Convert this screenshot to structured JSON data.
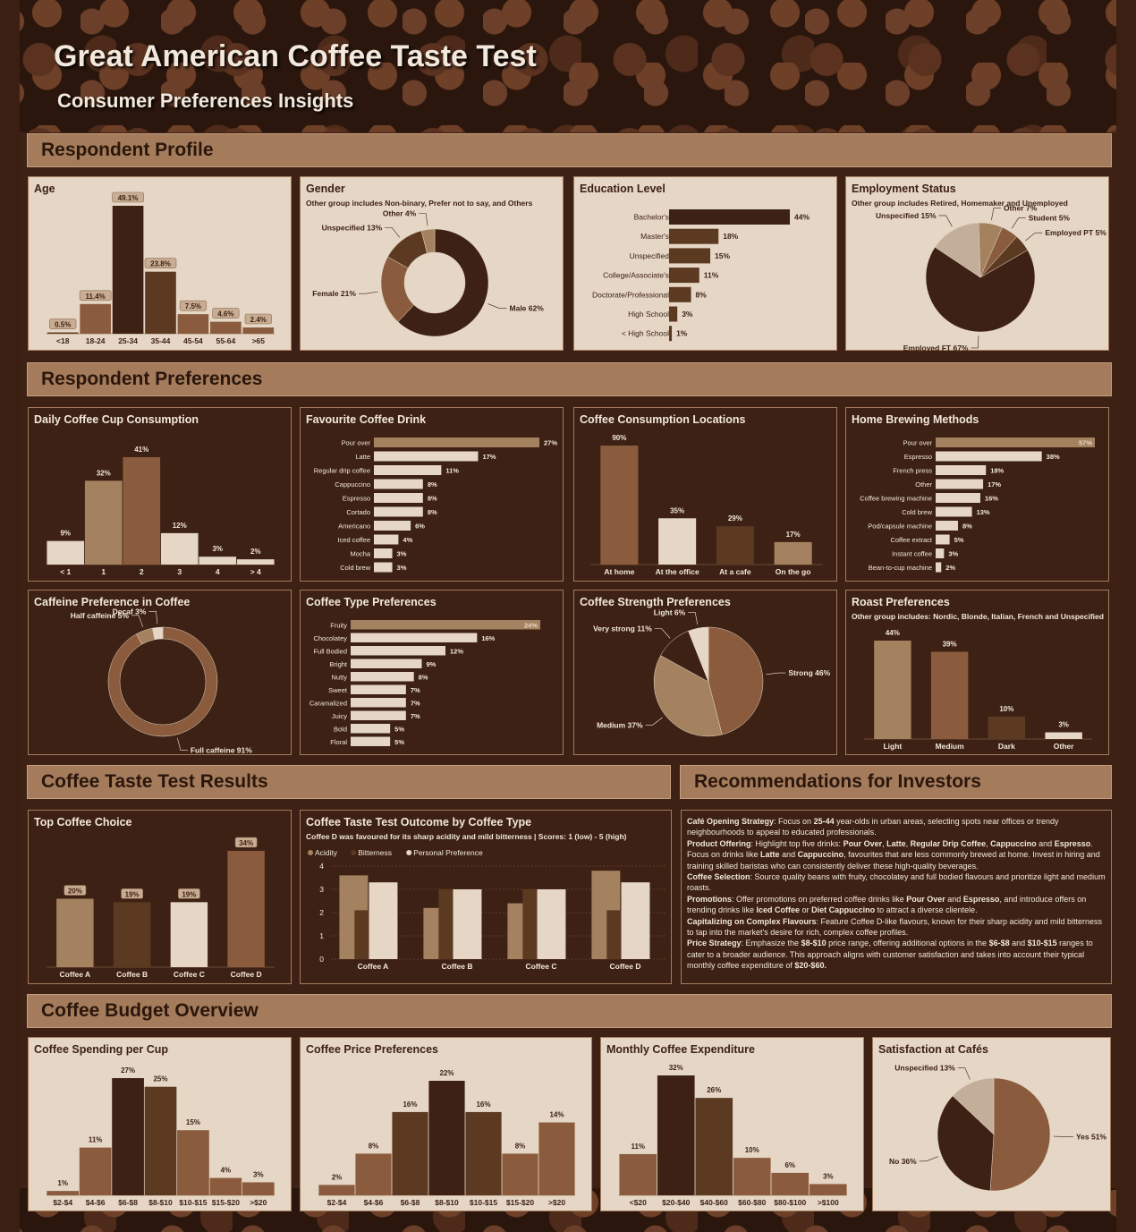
{
  "title": "Great American Coffee Taste Test",
  "subtitle": "Consumer Preferences Insights",
  "sections": {
    "profile": "Respondent Profile",
    "preferences": "Respondent Preferences",
    "results": "Coffee Taste Test Results",
    "recommendations": "Recommendations for Investors",
    "budget": "Coffee Budget Overview"
  },
  "colors": {
    "darkest": "#3d2114",
    "dark": "#5c3a22",
    "mid": "#8a5c3d",
    "tan": "#a5825f",
    "cream": "#e5d6c5",
    "bg": "#3d2114"
  },
  "panels": {
    "age": {
      "title": "Age"
    },
    "gender": {
      "title": "Gender",
      "note": "Other group includes Non-binary, Prefer not to say, and Others"
    },
    "education": {
      "title": "Education Level"
    },
    "employment": {
      "title": "Employment Status",
      "note": "Other group includes Retired, Homemaker and Unemployed"
    },
    "daily": {
      "title": "Daily Coffee Cup Consumption"
    },
    "drink": {
      "title": "Favourite Coffee Drink"
    },
    "locations": {
      "title": "Coffee Consumption Locations"
    },
    "brewing": {
      "title": "Home Brewing Methods"
    },
    "caffeine": {
      "title": "Caffeine Preference in Coffee"
    },
    "type": {
      "title": "Coffee Type Preferences"
    },
    "strength": {
      "title": "Coffee Strength Preferences"
    },
    "roast": {
      "title": "Roast Preferences",
      "note": "Other group includes: Nordic, Blonde, Italian, French and Unspecified"
    },
    "top": {
      "title": "Top Coffee Choice"
    },
    "outcome": {
      "title": "Coffee Taste Test Outcome by Coffee Type",
      "note": "Coffee D was favoured for its sharp acidity and mild bitterness | Scores: 1 (low) - 5 (high)"
    },
    "spending": {
      "title": "Coffee Spending per Cup"
    },
    "price": {
      "title": "Coffee Price Preferences"
    },
    "monthly": {
      "title": "Monthly Coffee Expenditure"
    },
    "satisfaction": {
      "title": "Satisfaction at Cafés"
    }
  },
  "recommendations": [
    {
      "head": "Café Opening Strategy",
      "text": ": Focus on <b>25-44</b> year-olds in urban areas, selecting spots near offices or trendy neighbourhoods to appeal to educated professionals."
    },
    {
      "head": "Product Offering",
      "text": ": Highlight top five drinks: <b>Pour Over</b>, <b>Latte</b>, <b>Regular Drip Coffee</b>, <b>Cappuccino</b> and <b>Espresso</b>. Focus on drinks like <b>Latte</b> and <b>Cappuccino</b>, favourites that are less commonly brewed at home. Invest in hiring and training skilled baristas who can consistently deliver these high-quality beverages."
    },
    {
      "head": "Coffee Selection",
      "text": ": Source quality beans with fruity, chocolatey and full bodied flavours and prioritize light and medium roasts."
    },
    {
      "head": "Promotions",
      "text": ": Offer promotions on preferred coffee drinks like <b>Pour Over</b> and <b>Espresso</b>, and introduce offers on trending drinks like <b>Iced Coffee</b> or <b>Diet Cappuccino</b> to attract a diverse clientele."
    },
    {
      "head": "Capitalizing on Complex Flavours",
      "text": ": Feature Coffee D-like flavours, known for their sharp acidity and mild bitterness to tap into the market's desire for rich, complex coffee profiles."
    },
    {
      "head": "Price Strategy",
      "text": ": Emphasize the <b>$8-$10</b> price range, offering additional options in the <b>$6-$8</b> and <b>$10-$15</b> ranges to cater to a broader audience. This approach aligns with customer satisfaction and takes into account their typical monthly coffee expenditure of <b>$20-$60.</b>"
    }
  ],
  "chart_data": [
    {
      "id": "age",
      "type": "bar",
      "categories": [
        "<18",
        "18-24",
        "25-34",
        "35-44",
        "45-54",
        "55-64",
        ">65"
      ],
      "values": [
        0.5,
        11.4,
        49.1,
        23.8,
        7.5,
        4.6,
        2.4
      ],
      "labels": [
        "0.5%",
        "11.4%",
        "49.1%",
        "23.8%",
        "7.5%",
        "4.6%",
        "2.4%"
      ],
      "colors": [
        "#5c3a22",
        "#8a5c3d",
        "#3d2114",
        "#5c3a22",
        "#8a5c3d",
        "#8a5c3d",
        "#8a5c3d"
      ]
    },
    {
      "id": "gender",
      "type": "pie",
      "donut": true,
      "slices": [
        {
          "label": "Male 62%",
          "value": 62,
          "color": "#3d2114"
        },
        {
          "label": "Female 21%",
          "value": 21,
          "color": "#8a5c3d"
        },
        {
          "label": "Unspecified 13%",
          "value": 13,
          "color": "#5c3a22"
        },
        {
          "label": "Other 4%",
          "value": 4,
          "color": "#a5825f"
        }
      ]
    },
    {
      "id": "education",
      "type": "hbar",
      "categories": [
        "Bachelor's",
        "Master's",
        "Unspecified",
        "College/Associate's",
        "Doctorate/Professional",
        "High School",
        "< High School"
      ],
      "values": [
        44,
        18,
        15,
        11,
        8,
        3,
        1
      ],
      "labels": [
        "44%",
        "18%",
        "15%",
        "11%",
        "8%",
        "3%",
        "1%"
      ],
      "colors": [
        "#3d2114",
        "#5c3a22",
        "#5c3a22",
        "#5c3a22",
        "#5c3a22",
        "#5c3a22",
        "#5c3a22"
      ]
    },
    {
      "id": "employment",
      "type": "pie",
      "slices": [
        {
          "label": "Employed FT 67%",
          "value": 67,
          "color": "#3d2114"
        },
        {
          "label": "Unspecified 15%",
          "value": 15,
          "color": "#c3ae9a"
        },
        {
          "label": "Other 7%",
          "value": 7,
          "color": "#a5825f"
        },
        {
          "label": "Student 5%",
          "value": 5,
          "color": "#8a5c3d"
        },
        {
          "label": "Employed PT 5%",
          "value": 5,
          "color": "#5c3a22"
        }
      ]
    },
    {
      "id": "daily",
      "type": "bar",
      "categories": [
        "< 1",
        "1",
        "2",
        "3",
        "4",
        "> 4"
      ],
      "values": [
        9,
        32,
        41,
        12,
        3,
        2
      ],
      "labels": [
        "9%",
        "32%",
        "41%",
        "12%",
        "3%",
        "2%"
      ],
      "colors": [
        "#e5d6c5",
        "#a5825f",
        "#8a5c3d",
        "#e5d6c5",
        "#e5d6c5",
        "#e5d6c5"
      ]
    },
    {
      "id": "drink",
      "type": "hbar",
      "categories": [
        "Pour over",
        "Latte",
        "Regular drip coffee",
        "Cappuccino",
        "Espresso",
        "Cortado",
        "Americano",
        "Iced coffee",
        "Mocha",
        "Cold brew"
      ],
      "values": [
        27,
        17,
        11,
        8,
        8,
        8,
        6,
        4,
        3,
        3
      ],
      "labels": [
        "27%",
        "17%",
        "11%",
        "8%",
        "8%",
        "8%",
        "6%",
        "4%",
        "3%",
        "3%"
      ],
      "colors": [
        "#a5825f",
        "#e5d6c5",
        "#e5d6c5",
        "#e5d6c5",
        "#e5d6c5",
        "#e5d6c5",
        "#e5d6c5",
        "#e5d6c5",
        "#e5d6c5",
        "#e5d6c5"
      ]
    },
    {
      "id": "locations",
      "type": "bar",
      "categories": [
        "At home",
        "At the office",
        "At a cafe",
        "On the go"
      ],
      "values": [
        90,
        35,
        29,
        17
      ],
      "labels": [
        "90%",
        "35%",
        "29%",
        "17%"
      ],
      "colors": [
        "#8a5c3d",
        "#e5d6c5",
        "#5c3a22",
        "#a5825f"
      ]
    },
    {
      "id": "brewing",
      "type": "hbar",
      "categories": [
        "Pour over",
        "Espresso",
        "French press",
        "Other",
        "Coffee brewing machine",
        "Cold brew",
        "Pod/capsule machine",
        "Coffee extract",
        "Instant coffee",
        "Bean-to-cup machine"
      ],
      "values": [
        57,
        38,
        18,
        17,
        16,
        13,
        8,
        5,
        3,
        2
      ],
      "labels": [
        "57%",
        "38%",
        "18%",
        "17%",
        "16%",
        "13%",
        "8%",
        "5%",
        "3%",
        "2%"
      ],
      "colors": [
        "#a5825f",
        "#e5d6c5",
        "#e5d6c5",
        "#e5d6c5",
        "#e5d6c5",
        "#e5d6c5",
        "#e5d6c5",
        "#e5d6c5",
        "#e5d6c5",
        "#e5d6c5"
      ]
    },
    {
      "id": "caffeine",
      "type": "pie",
      "donut": true,
      "slices": [
        {
          "label": "Full caffeine 91%",
          "value": 91,
          "color": "#8a5c3d"
        },
        {
          "label": "Half caffeine 5%",
          "value": 5,
          "color": "#a5825f"
        },
        {
          "label": "Decaf 3%",
          "value": 3,
          "color": "#e5d6c5"
        }
      ]
    },
    {
      "id": "type",
      "type": "hbar",
      "categories": [
        "Fruity",
        "Chocolatey",
        "Full Bodied",
        "Bright",
        "Nutty",
        "Sweet",
        "Caramalized",
        "Juicy",
        "Bold",
        "Floral"
      ],
      "values": [
        24,
        16,
        12,
        9,
        8,
        7,
        7,
        7,
        5,
        5
      ],
      "labels": [
        "24%",
        "16%",
        "12%",
        "9%",
        "8%",
        "7%",
        "7%",
        "7%",
        "5%",
        "5%"
      ],
      "colors": [
        "#a5825f",
        "#e5d6c5",
        "#e5d6c5",
        "#e5d6c5",
        "#e5d6c5",
        "#e5d6c5",
        "#e5d6c5",
        "#e5d6c5",
        "#e5d6c5",
        "#e5d6c5"
      ]
    },
    {
      "id": "strength",
      "type": "pie",
      "slices": [
        {
          "label": "Strong 46%",
          "value": 46,
          "color": "#8a5c3d"
        },
        {
          "label": "Medium 37%",
          "value": 37,
          "color": "#a5825f"
        },
        {
          "label": "Very strong 11%",
          "value": 11,
          "color": "#3d2114"
        },
        {
          "label": "Light 6%",
          "value": 6,
          "color": "#e5d6c5"
        }
      ]
    },
    {
      "id": "roast",
      "type": "bar",
      "categories": [
        "Light",
        "Medium",
        "Dark",
        "Other"
      ],
      "values": [
        44,
        39,
        10,
        3
      ],
      "labels": [
        "44%",
        "39%",
        "10%",
        "3%"
      ],
      "colors": [
        "#a5825f",
        "#8a5c3d",
        "#5c3a22",
        "#e5d6c5"
      ]
    },
    {
      "id": "top",
      "type": "bar",
      "categories": [
        "Coffee A",
        "Coffee B",
        "Coffee C",
        "Coffee D"
      ],
      "values": [
        20,
        19,
        19,
        34
      ],
      "labels": [
        "20%",
        "19%",
        "19%",
        "34%"
      ],
      "colors": [
        "#a5825f",
        "#5c3a22",
        "#e5d6c5",
        "#8a5c3d"
      ]
    },
    {
      "id": "outcome",
      "type": "bar",
      "categories": [
        "Coffee A",
        "Coffee B",
        "Coffee C",
        "Coffee D"
      ],
      "ylim": [
        0,
        4
      ],
      "yticks": [
        "0",
        "1",
        "2",
        "3",
        "4"
      ],
      "series": [
        {
          "name": "Acidity",
          "values": [
            3.6,
            2.2,
            2.4,
            3.8
          ],
          "color": "#a5825f"
        },
        {
          "name": "Bitterness",
          "values": [
            2.1,
            3.0,
            3.0,
            2.1
          ],
          "color": "#5c3a22"
        },
        {
          "name": "Personal Preference",
          "values": [
            3.3,
            3.0,
            3.0,
            3.3
          ],
          "color": "#e5d6c5"
        }
      ]
    },
    {
      "id": "spending",
      "type": "bar",
      "categories": [
        "$2-$4",
        "$4-$6",
        "$6-$8",
        "$8-$10",
        "$10-$15",
        "$15-$20",
        ">$20"
      ],
      "values": [
        1,
        11,
        27,
        25,
        15,
        4,
        3
      ],
      "labels": [
        "1%",
        "11%",
        "27%",
        "25%",
        "15%",
        "4%",
        "3%"
      ],
      "colors": [
        "#8a5c3d",
        "#8a5c3d",
        "#3d2114",
        "#5c3a22",
        "#8a5c3d",
        "#8a5c3d",
        "#8a5c3d"
      ]
    },
    {
      "id": "price",
      "type": "bar",
      "categories": [
        "$2-$4",
        "$4-$6",
        "$6-$8",
        "$8-$10",
        "$10-$15",
        "$15-$20",
        ">$20"
      ],
      "values": [
        2,
        8,
        16,
        22,
        16,
        8,
        14
      ],
      "labels": [
        "2%",
        "8%",
        "16%",
        "22%",
        "16%",
        "8%",
        "14%"
      ],
      "colors": [
        "#8a5c3d",
        "#8a5c3d",
        "#5c3a22",
        "#3d2114",
        "#5c3a22",
        "#8a5c3d",
        "#8a5c3d"
      ]
    },
    {
      "id": "monthly",
      "type": "bar",
      "categories": [
        "<$20",
        "$20-$40",
        "$40-$60",
        "$60-$80",
        "$80-$100",
        ">$100"
      ],
      "values": [
        11,
        32,
        26,
        10,
        6,
        3
      ],
      "labels": [
        "11%",
        "32%",
        "26%",
        "10%",
        "6%",
        "3%"
      ],
      "colors": [
        "#8a5c3d",
        "#3d2114",
        "#5c3a22",
        "#8a5c3d",
        "#8a5c3d",
        "#8a5c3d"
      ]
    },
    {
      "id": "satisfaction",
      "type": "pie",
      "slices": [
        {
          "label": "Yes 51%",
          "value": 51,
          "color": "#8a5c3d"
        },
        {
          "label": "No 36%",
          "value": 36,
          "color": "#3d2114"
        },
        {
          "label": "Unspecified 13%",
          "value": 13,
          "color": "#c3ae9a"
        }
      ]
    }
  ]
}
